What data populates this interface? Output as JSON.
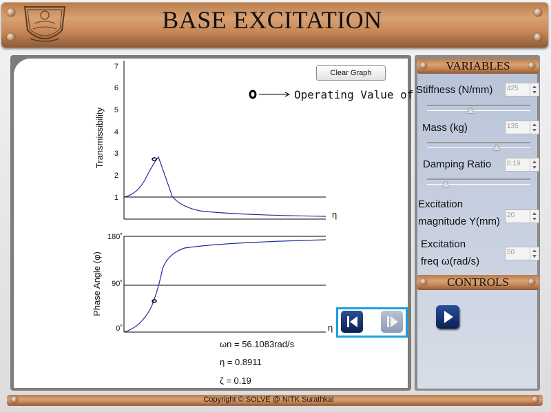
{
  "header": {
    "title": "BASE EXCITATION"
  },
  "graph": {
    "clear_label": "Clear Graph",
    "legend_text": "Operating Value of η",
    "trans_ylabel": "Transmissibility",
    "phase_ylabel": "Phase Angle (φ)",
    "trans_xlabel": "η",
    "phase_xlabel": "η",
    "trans_ticks": [
      "7",
      "6",
      "5",
      "4",
      "3",
      "2",
      "1"
    ],
    "phase_ticks": [
      "180˚",
      "90˚",
      "0˚"
    ]
  },
  "results": {
    "wn": "ωn = 56.1083rad/s",
    "eta": "η = 0.8911",
    "zeta": "ζ = 0.19"
  },
  "variables": {
    "header": "VARIABLES",
    "stiffness_label": "Stiffness (N/mm)",
    "stiffness_value": "425",
    "stiffness_slider": 0.42,
    "mass_label": "Mass (kg)",
    "mass_value": "135",
    "mass_slider": 0.68,
    "damping_label": "Damping Ratio",
    "damping_value": "0.19",
    "damping_slider": 0.19,
    "excitation_mag_label_1": "Excitation",
    "excitation_mag_label_2": "magnitude Y(mm)",
    "excitation_mag_value": "20",
    "excitation_freq_label_1": "Excitation",
    "excitation_freq_label_2": "freq ω(rad/s)",
    "excitation_freq_value": "50"
  },
  "controls": {
    "header": "CONTROLS"
  },
  "footer": {
    "copyright": "Copyright © SOLVE @ NITK Surathkal"
  },
  "colors": {
    "accent": "#1aa0e0",
    "curve": "#1f2f9a",
    "banner": "#c88858"
  }
}
